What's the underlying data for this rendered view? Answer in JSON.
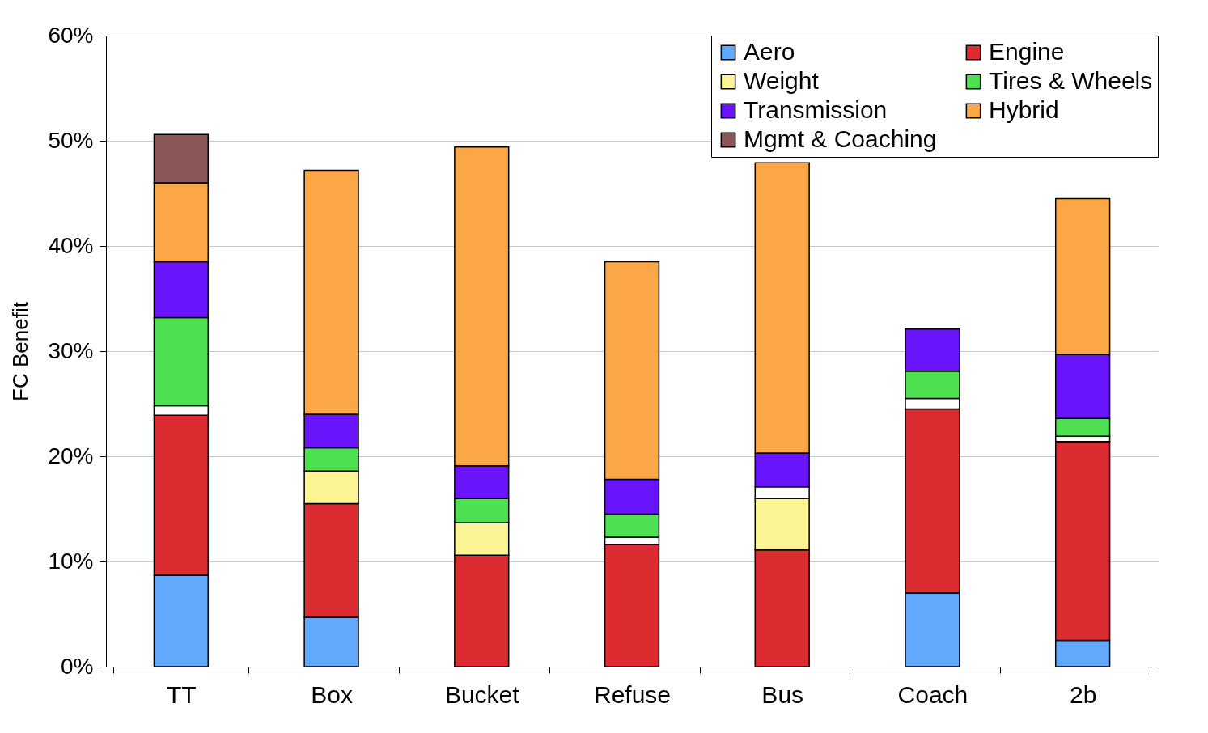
{
  "chart_data": {
    "type": "bar",
    "stacked": true,
    "ylabel": "FC Benefit",
    "categories": [
      "TT",
      "Box",
      "Bucket",
      "Refuse",
      "Bus",
      "Coach",
      "2b"
    ],
    "series": [
      {
        "name": "Aero",
        "color": "#62a8fc",
        "values": [
          8.7,
          4.7,
          null,
          null,
          null,
          7.0,
          2.5
        ]
      },
      {
        "name": "Engine",
        "color": "#dc2c32",
        "values": [
          15.2,
          10.8,
          10.6,
          11.6,
          11.1,
          17.5,
          18.9
        ]
      },
      {
        "name": "Weight",
        "color": "#fcf595",
        "values": [
          null,
          3.1,
          3.1,
          null,
          4.9,
          null,
          null
        ]
      },
      {
        "color": "#ffffff",
        "values": [
          0.9,
          null,
          null,
          0.7,
          1.1,
          1.0,
          0.5
        ]
      },
      {
        "name": "Tires & Wheels",
        "color": "#4fe052",
        "values": [
          8.4,
          2.2,
          2.3,
          2.2,
          null,
          2.6,
          1.7
        ]
      },
      {
        "name": "Transmission",
        "color": "#6a14fc",
        "values": [
          5.3,
          3.2,
          3.1,
          3.3,
          3.2,
          4.0,
          6.1
        ]
      },
      {
        "name": "Hybrid",
        "color": "#fba747",
        "values": [
          7.5,
          23.2,
          30.3,
          20.7,
          27.6,
          null,
          14.8
        ]
      },
      {
        "name": "Mgmt & Coaching",
        "color": "#8b5656",
        "values": [
          4.6,
          null,
          null,
          null,
          null,
          null,
          null
        ]
      }
    ],
    "ylim": [
      0,
      60
    ],
    "yticks": [
      {
        "value": 0,
        "label": "0%"
      },
      {
        "value": 10,
        "label": "10%"
      },
      {
        "value": 20,
        "label": "20%"
      },
      {
        "value": 30,
        "label": "30%"
      },
      {
        "value": 40,
        "label": "40%"
      },
      {
        "value": 50,
        "label": "50%"
      },
      {
        "value": 60,
        "label": "60%"
      }
    ],
    "grid": "y",
    "legend": "top right"
  }
}
